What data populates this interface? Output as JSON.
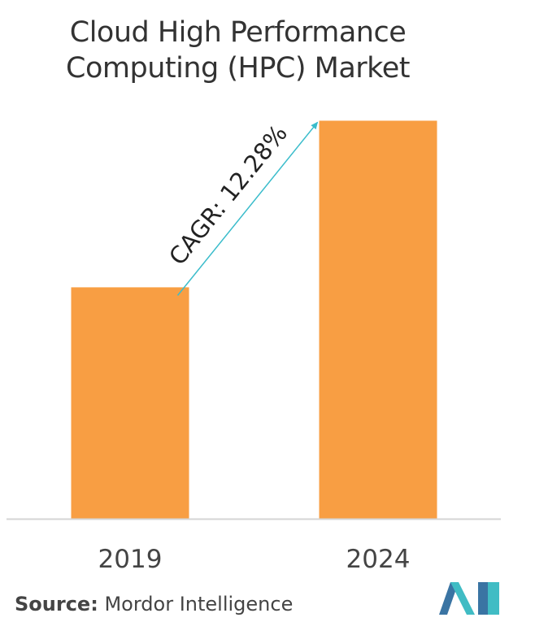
{
  "chart_data": {
    "type": "bar",
    "title": [
      "Cloud High Performance",
      "Computing (HPC) Market"
    ],
    "categories": [
      "2019",
      "2024"
    ],
    "values": [
      1.0,
      1.72
    ],
    "annotation": "CAGR: 12.28%",
    "ylim": [
      0,
      1.82
    ],
    "grid": false,
    "legend": "none"
  },
  "colors": {
    "bar": "#F89E43",
    "arrow": "#3ABCCB",
    "axis": "#D5D5D5",
    "text": "#333333",
    "logo_left": "#3A74A3",
    "logo_right": "#40BCC4"
  },
  "source": {
    "label": "Source:",
    "text": "Mordor Intelligence"
  },
  "logo": {
    "icon": "mordor-intelligence-logo-icon"
  }
}
